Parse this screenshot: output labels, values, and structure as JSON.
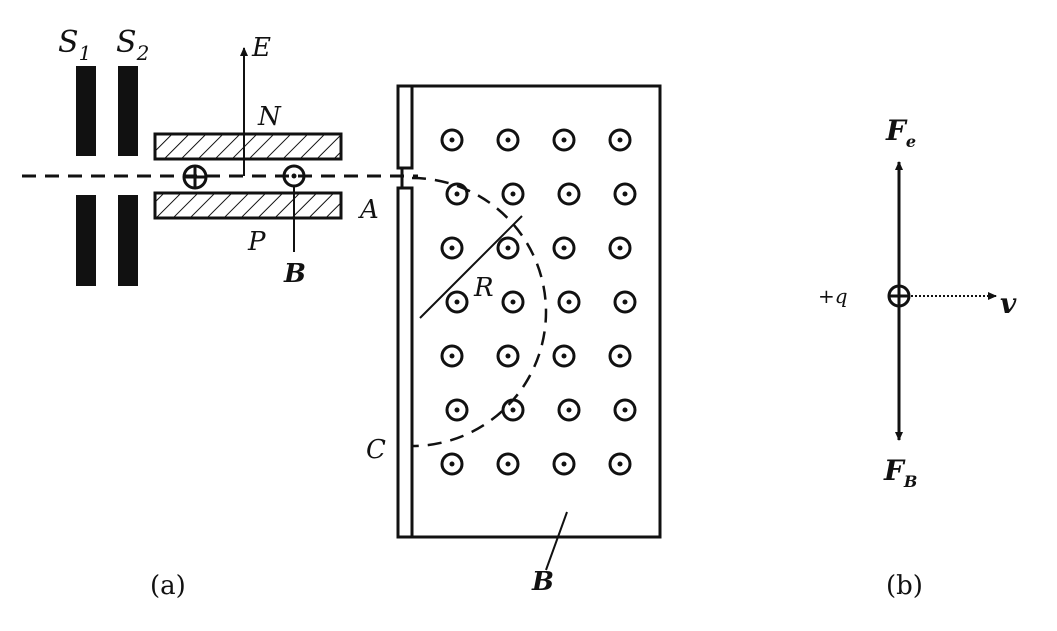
{
  "diagram_a": {
    "slit1_label": {
      "main": "S",
      "sub": "1"
    },
    "slit2_label": {
      "main": "S",
      "sub": "2"
    },
    "e_field_label": "E",
    "top_plate_label": "N",
    "bottom_plate_label": "P",
    "plate_b_label": "B",
    "exit_label": "A",
    "radius_label": "R",
    "point_c_label": "C",
    "chamber_b_label": "B",
    "caption": "(a)",
    "field_rows": 7,
    "field_cols": 4
  },
  "diagram_b": {
    "charge_label": "+q",
    "velocity_label": "v",
    "fe_label": {
      "main": "F",
      "sub": "e"
    },
    "fb_label": {
      "main": "F",
      "sub": "B"
    },
    "caption": "(b)"
  },
  "colors": {
    "ink": "#111111",
    "background": "#ffffff"
  }
}
